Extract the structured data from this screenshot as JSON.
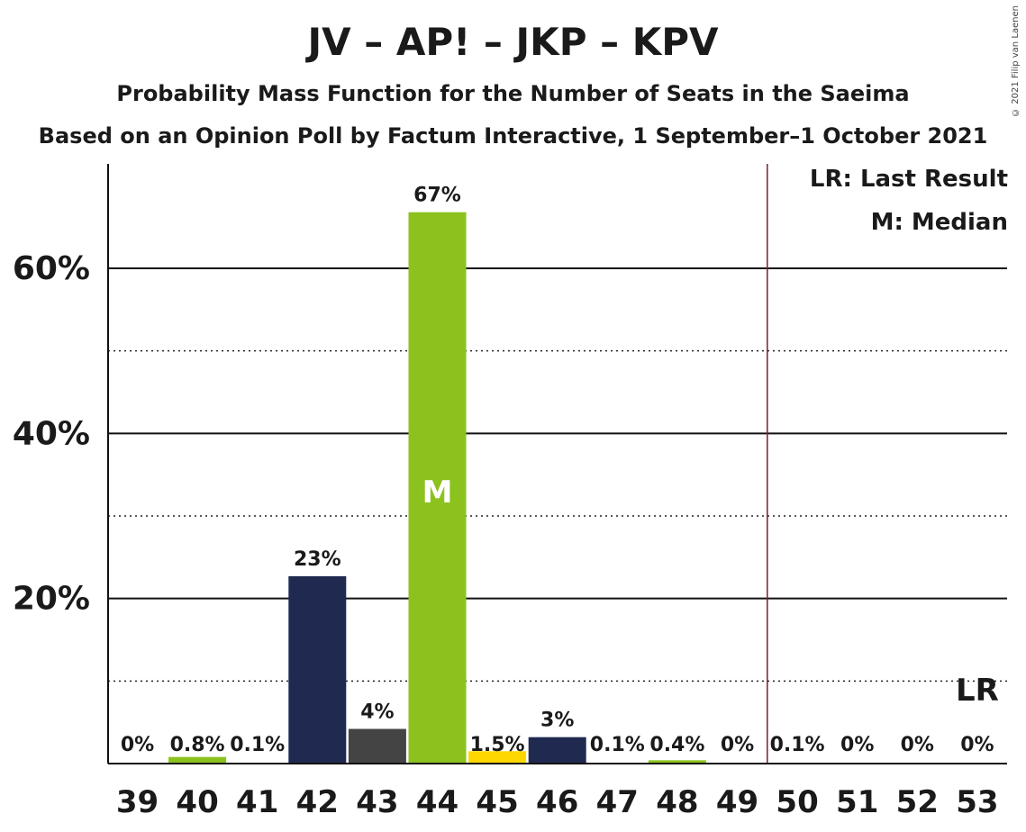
{
  "chart_data": {
    "type": "bar",
    "title": "JV – AP! – JKP – KPV",
    "subtitle": "Probability Mass Function for the Number of Seats in the Saeima",
    "subtitle2": "Based on an Opinion Poll by Factum Interactive, 1 September–1 October 2021",
    "copyright": "© 2021 Filip van Laenen",
    "categories": [
      "39",
      "40",
      "41",
      "42",
      "43",
      "44",
      "45",
      "46",
      "47",
      "48",
      "49",
      "50",
      "51",
      "52",
      "53"
    ],
    "values": [
      0,
      0.8,
      0.1,
      22.7,
      4.2,
      66.8,
      1.5,
      3.2,
      0.1,
      0.4,
      0,
      0.1,
      0,
      0,
      0
    ],
    "labels": [
      "0%",
      "0.8%",
      "0.1%",
      "23%",
      "4%",
      "67%",
      "1.5%",
      "3%",
      "0.1%",
      "0.4%",
      "0%",
      "0.1%",
      "0%",
      "0%",
      "0%"
    ],
    "colors": [
      "#8cc21e",
      "#8cc21e",
      "#8cc21e",
      "#20294f",
      "#444444",
      "#8cc21e",
      "#ffd700",
      "#20294f",
      "#8cc21e",
      "#8cc21e",
      "#8cc21e",
      "#8cc21e",
      "#8cc21e",
      "#8cc21e",
      "#8cc21e"
    ],
    "y_ticks": [
      "20%",
      "40%",
      "60%"
    ],
    "ylim": [
      0,
      72
    ],
    "median_index": 5,
    "median_marker": "M",
    "last_result_marker": "LR",
    "last_result_index": 14,
    "legend": {
      "last_result": "LR: Last Result",
      "median": "M: Median"
    }
  }
}
